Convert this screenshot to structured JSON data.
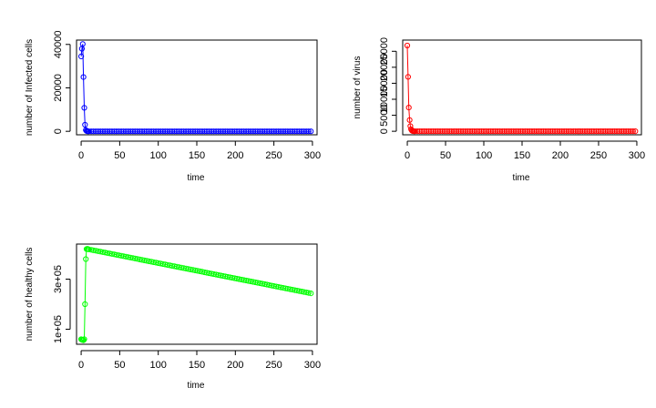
{
  "chart_data": [
    {
      "type": "line",
      "id": "infected",
      "xlabel": "time",
      "ylabel": "number of Infected cells",
      "color": "#0000ff",
      "xlim": [
        -6,
        306
      ],
      "ylim": [
        -1600,
        42000
      ],
      "xticks": [
        0,
        50,
        100,
        150,
        200,
        250,
        300
      ],
      "yticks": [
        0,
        20000,
        40000
      ],
      "x": [
        0,
        1,
        2,
        3,
        4,
        5,
        6,
        7,
        8,
        9,
        10
      ],
      "y": [
        34500,
        38000,
        40200,
        25000,
        10800,
        3000,
        600,
        150,
        40,
        10,
        0
      ],
      "tail": {
        "from": 10,
        "to": 300,
        "step": 3,
        "value": 0
      }
    },
    {
      "type": "line",
      "id": "virus",
      "xlabel": "time",
      "ylabel": "number of virus",
      "color": "#ff0000",
      "xlim": [
        -6,
        306
      ],
      "ylim": [
        -1100,
        28500
      ],
      "xticks": [
        0,
        50,
        100,
        150,
        200,
        250,
        300
      ],
      "yticks": [
        0,
        5000,
        10000,
        15000,
        20000,
        25000
      ],
      "x": [
        0,
        1,
        2,
        3,
        4,
        5,
        6,
        7,
        8,
        9,
        10
      ],
      "y": [
        26800,
        17000,
        7400,
        3500,
        1600,
        600,
        200,
        80,
        30,
        10,
        0
      ],
      "tail": {
        "from": 10,
        "to": 300,
        "step": 3,
        "value": 0
      }
    },
    {
      "type": "line",
      "id": "healthy",
      "xlabel": "time",
      "ylabel": "number of healthy cells",
      "color": "#00ff00",
      "xlim": [
        -6,
        306
      ],
      "ylim": [
        40000,
        440000
      ],
      "xticks": [
        0,
        50,
        100,
        150,
        200,
        250,
        300
      ],
      "yticks": [
        100000,
        300000
      ],
      "ytick_labels": [
        "1e+05",
        "3e+05"
      ],
      "x": [
        0,
        1,
        2,
        3,
        4,
        5,
        6,
        7,
        8,
        9,
        10
      ],
      "y": [
        60000,
        58000,
        57000,
        56000,
        60000,
        200000,
        380000,
        420000,
        421000,
        420000,
        419000
      ],
      "tail": {
        "from": 10,
        "to": 300,
        "step": 3,
        "start": 419000,
        "end": 242000
      }
    }
  ]
}
